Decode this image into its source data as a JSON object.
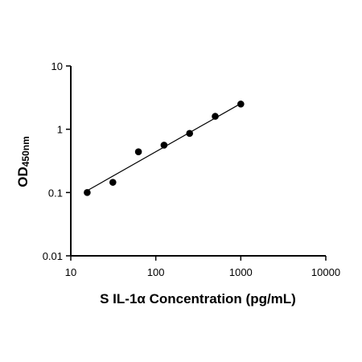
{
  "chart_data": {
    "type": "scatter",
    "title": "",
    "xlabel": "S IL-1α Concentration (pg/mL)",
    "ylabel_main": "OD",
    "ylabel_sub": "450nm",
    "x_scale": "log",
    "y_scale": "log",
    "xlim": [
      10,
      10000
    ],
    "ylim": [
      0.01,
      10
    ],
    "x_ticks": [
      "10",
      "100",
      "1000",
      "10000"
    ],
    "y_ticks": [
      "0.01",
      "0.1",
      "1",
      "10"
    ],
    "grid": false,
    "legend": "none",
    "series": [
      {
        "x": [
          15.6,
          31.25,
          62.5,
          125,
          250,
          500,
          1000
        ],
        "y": [
          0.1,
          0.145,
          0.44,
          0.56,
          0.86,
          1.6,
          2.5
        ]
      }
    ],
    "fit_line": {
      "x": [
        15.6,
        1000
      ],
      "y": [
        0.107,
        2.55
      ]
    },
    "colors": {
      "axis": "#000000",
      "points": "#000000",
      "line": "#000000"
    }
  }
}
